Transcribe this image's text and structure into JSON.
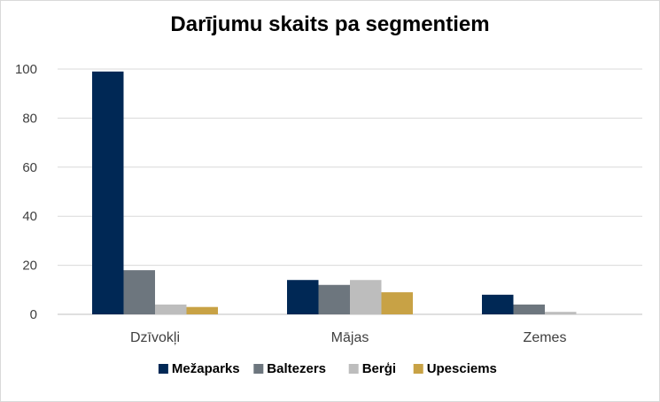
{
  "chart_data": {
    "type": "bar",
    "title": "Darījumu skaits pa segmentiem",
    "categories": [
      "Dzīvokļi",
      "Mājas",
      "Zemes"
    ],
    "series": [
      {
        "name": "Mežaparks",
        "values": [
          99,
          14,
          8
        ],
        "color": "#002855"
      },
      {
        "name": "Baltezers",
        "values": [
          18,
          12,
          4
        ],
        "color": "#6d767e"
      },
      {
        "name": "Berģi",
        "values": [
          4,
          14,
          1
        ],
        "color": "#bdbdbd"
      },
      {
        "name": "Upesciems",
        "values": [
          3,
          9,
          0
        ],
        "color": "#c8a245"
      }
    ],
    "ylim": [
      0,
      100
    ],
    "yticks": [
      0,
      20,
      40,
      60,
      80,
      100
    ],
    "grid": true,
    "legend_position": "bottom"
  }
}
